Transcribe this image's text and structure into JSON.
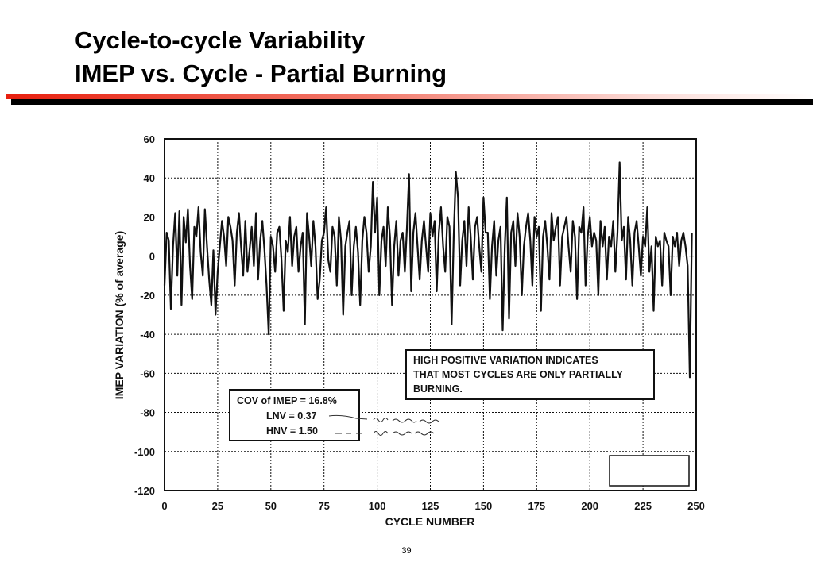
{
  "slide": {
    "title_line1": "Cycle-to-cycle Variability",
    "title_line2": "IMEP vs. Cycle - Partial Burning",
    "page_number": "39"
  },
  "colors": {
    "title_rule_red": "#e8200f",
    "title_rule_black": "#000000",
    "plot_ink": "#111111"
  },
  "chart_data": {
    "type": "line",
    "title": "",
    "xlabel": "CYCLE NUMBER",
    "ylabel": "IMEP VARIATION (% of average)",
    "xlim": [
      0,
      250
    ],
    "ylim": [
      -120,
      60
    ],
    "x_ticks": [
      0,
      25,
      50,
      75,
      100,
      125,
      150,
      175,
      200,
      225,
      250
    ],
    "y_ticks": [
      60,
      40,
      20,
      0,
      -20,
      -40,
      -60,
      -80,
      -100,
      -120
    ],
    "grid": true,
    "grid_style": "dotted",
    "series": [
      {
        "values": [
          -15,
          12,
          8,
          -27,
          5,
          22,
          -10,
          23,
          -25,
          20,
          7,
          24,
          -5,
          -22,
          15,
          10,
          25,
          2,
          -10,
          24,
          5,
          -12,
          -25,
          3,
          -30,
          -8,
          5,
          18,
          10,
          -5,
          20,
          15,
          8,
          -15,
          12,
          22,
          5,
          -10,
          18,
          -8,
          3,
          15,
          -5,
          22,
          -12,
          8,
          18,
          3,
          -15,
          -40,
          10,
          5,
          -8,
          12,
          15,
          -2,
          -28,
          8,
          2,
          20,
          -5,
          10,
          15,
          -8,
          5,
          12,
          -35,
          22,
          10,
          -5,
          18,
          5,
          -22,
          -12,
          8,
          12,
          25,
          -2,
          -8,
          15,
          10,
          -15,
          20,
          8,
          -30,
          5,
          12,
          18,
          -20,
          5,
          15,
          2,
          -25,
          8,
          20,
          12,
          -8,
          5,
          38,
          12,
          30,
          -20,
          8,
          15,
          -5,
          25,
          10,
          -25,
          5,
          18,
          -10,
          8,
          12,
          -8,
          15,
          42,
          -18,
          12,
          22,
          5,
          -12,
          8,
          18,
          5,
          -8,
          22,
          10,
          18,
          -18,
          12,
          25,
          5,
          -8,
          20,
          15,
          -35,
          10,
          43,
          30,
          -15,
          8,
          18,
          -5,
          25,
          10,
          -12,
          15,
          20,
          5,
          -8,
          30,
          12,
          12,
          -22,
          5,
          18,
          -10,
          8,
          15,
          -38,
          5,
          30,
          -32,
          12,
          18,
          -5,
          22,
          10,
          -20,
          5,
          15,
          22,
          8,
          -15,
          20,
          10,
          15,
          -28,
          10,
          18,
          5,
          -12,
          22,
          8,
          15,
          20,
          -15,
          10,
          15,
          20,
          5,
          -8,
          18,
          10,
          -22,
          15,
          12,
          25,
          -15,
          10,
          20,
          5,
          12,
          8,
          -20,
          18,
          5,
          15,
          -12,
          10,
          5,
          18,
          -8,
          12,
          48,
          8,
          15,
          -12,
          20,
          8,
          -15,
          12,
          18,
          5,
          -10,
          10,
          5,
          25,
          -8,
          5,
          -28,
          10,
          5,
          8,
          -15,
          12,
          8,
          5,
          -20,
          10,
          5,
          12,
          -5,
          8,
          12,
          5,
          -5,
          -62,
          12
        ]
      }
    ],
    "annotations": {
      "stats_box": [
        "COV of IMEP = 16.8%",
        "LNV = 0.37",
        "HNV = 1.50"
      ],
      "note_box": [
        "HIGH POSITIVE VARIATION INDICATES",
        "THAT MOST CYCLES ARE ONLY PARTIALLY",
        "BURNING."
      ]
    }
  }
}
